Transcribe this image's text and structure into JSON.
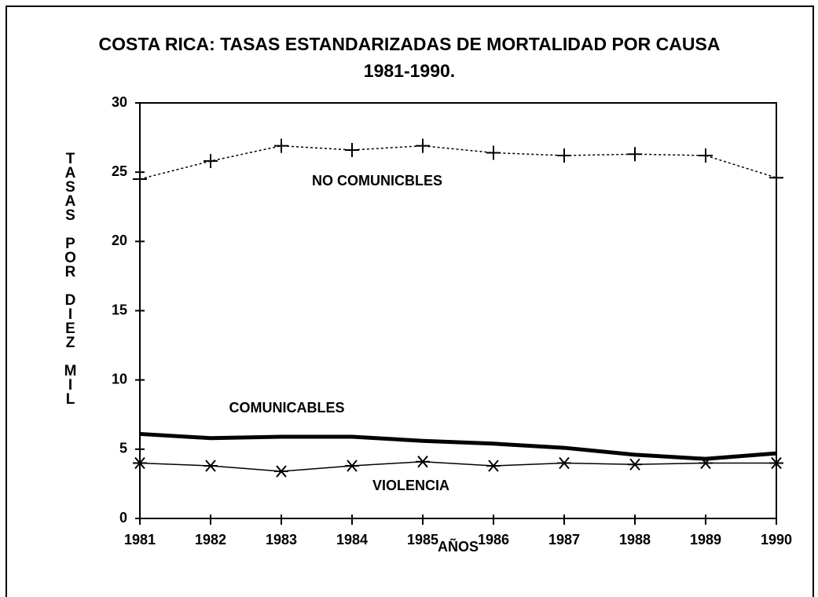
{
  "chart_data": {
    "type": "line",
    "title": "COSTA RICA: TASAS ESTANDARIZADAS DE MORTALIDAD POR CAUSA",
    "subtitle": "1981-1990.",
    "x_label": "AÑOS",
    "y_label": "TASAS POR DIEZ MIL",
    "x": [
      1981,
      1982,
      1983,
      1984,
      1985,
      1986,
      1987,
      1988,
      1989,
      1990
    ],
    "xlim": [
      1981,
      1990
    ],
    "xticks": [
      1981,
      1982,
      1983,
      1984,
      1985,
      1986,
      1987,
      1988,
      1989,
      1990
    ],
    "ylim": [
      0,
      30
    ],
    "yticks": [
      0,
      5,
      10,
      15,
      20,
      25,
      30
    ],
    "grid": false,
    "series": [
      {
        "name": "NO COMUNICBLES",
        "color": "#000000",
        "marker": "plus",
        "dash": true,
        "width": 1.5,
        "values": [
          24.5,
          25.8,
          26.9,
          26.6,
          26.9,
          26.4,
          26.2,
          26.3,
          26.2,
          24.6
        ]
      },
      {
        "name": "COMUNICABLES",
        "color": "#000000",
        "marker": "none",
        "dash": false,
        "width": 5,
        "values": [
          6.1,
          5.8,
          5.9,
          5.9,
          5.6,
          5.4,
          5.1,
          4.6,
          4.3,
          4.7
        ]
      },
      {
        "name": "VIOLENCIA",
        "color": "#000000",
        "marker": "star",
        "dash": false,
        "width": 1.5,
        "values": [
          4.0,
          3.8,
          3.4,
          3.8,
          4.1,
          3.8,
          4.0,
          3.9,
          4.0,
          4.0
        ]
      }
    ]
  }
}
